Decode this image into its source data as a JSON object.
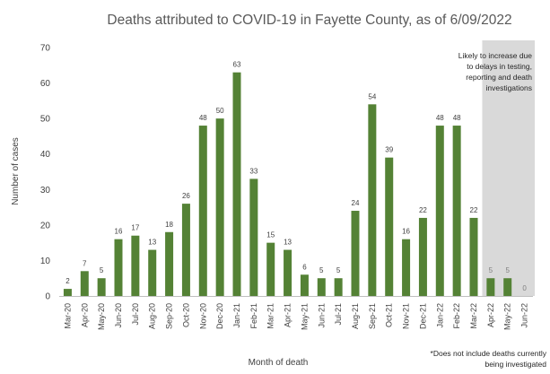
{
  "chart_data": {
    "type": "bar",
    "title": "Deaths attributed to COVID-19 in Fayette County, as of 6/09/2022",
    "xlabel": "Month of death",
    "ylabel": "Number of cases",
    "ylim": [
      0,
      70
    ],
    "y_ticks": [
      0,
      10,
      20,
      30,
      40,
      50,
      60,
      70
    ],
    "grid": false,
    "categories": [
      "Mar-20",
      "Apr-20",
      "May-20",
      "Jun-20",
      "Jul-20",
      "Aug-20",
      "Sep-20",
      "Oct-20",
      "Nov-20",
      "Dec-20",
      "Jan-21",
      "Feb-21",
      "Mar-21",
      "Apr-21",
      "May-21",
      "Jun-21",
      "Jul-21",
      "Aug-21",
      "Sep-21",
      "Oct-21",
      "Nov-21",
      "Dec-21",
      "Jan-22",
      "Feb-22",
      "Mar-22",
      "Apr-22",
      "May-22",
      "Jun-22"
    ],
    "values": [
      2,
      7,
      5,
      16,
      17,
      13,
      18,
      26,
      48,
      50,
      63,
      33,
      15,
      13,
      6,
      5,
      5,
      24,
      54,
      39,
      16,
      22,
      48,
      48,
      22,
      5,
      5,
      0
    ],
    "shaded_region": {
      "categories": [
        "Apr-22",
        "May-22",
        "Jun-22"
      ],
      "annotation": "Likely to increase due to delays in testing, reporting and death investigations"
    },
    "footnote": "*Does not include deaths currently being investigated",
    "colors": {
      "bar": "#548235",
      "shade": "#d9d9d9",
      "text": "#404040",
      "axis": "#bfbfbf"
    }
  }
}
